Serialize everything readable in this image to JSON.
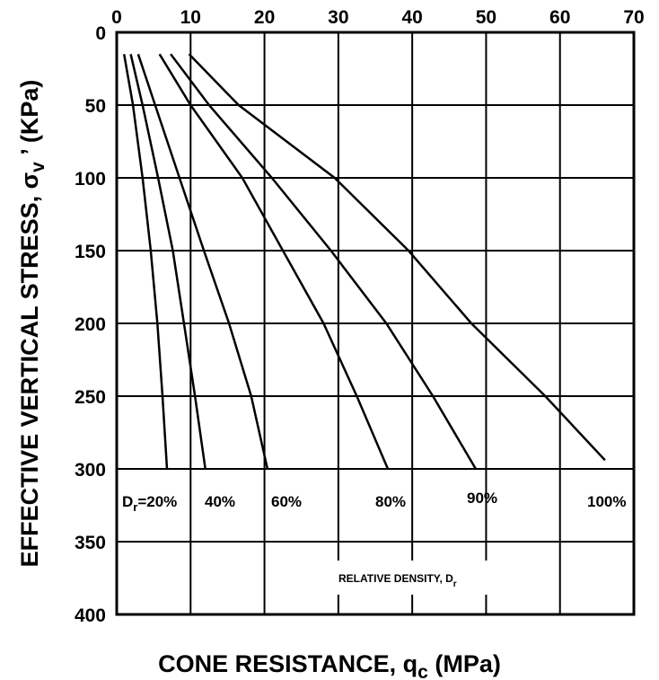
{
  "chart_data": {
    "type": "line",
    "x_title": {
      "text": "CONE RESISTANCE, q",
      "sub": "c",
      "after": " (MPa)"
    },
    "y_title": {
      "text": "EFFECTIVE VERTICAL STRESS, σ",
      "sub": "v",
      "after": " ’ (KPa)"
    },
    "annotation": {
      "text": "RELATIVE DENSITY, D",
      "sub": "r"
    },
    "series_label_prefix": {
      "text": "D",
      "sub": "r"
    },
    "xlim": [
      0,
      70
    ],
    "xticks": [
      0,
      10,
      20,
      30,
      40,
      50,
      60,
      70
    ],
    "ylim": [
      0,
      400
    ],
    "yticks": [
      0,
      50,
      100,
      150,
      200,
      250,
      300,
      350,
      400
    ],
    "y_inverted": true,
    "x_axis_top": true,
    "grid": true,
    "series": [
      {
        "name": "=20%",
        "color": "#000000",
        "x": [
          1.0,
          2.2,
          3.5,
          4.6,
          5.5,
          6.2,
          6.8
        ],
        "values": [
          15,
          50,
          100,
          150,
          200,
          250,
          300
        ]
      },
      {
        "name": "40%",
        "color": "#000000",
        "x": [
          1.9,
          3.5,
          5.6,
          7.6,
          9.1,
          10.6,
          12.0
        ],
        "values": [
          15,
          50,
          100,
          150,
          200,
          250,
          300
        ]
      },
      {
        "name": "60%",
        "color": "#000000",
        "x": [
          2.9,
          5.2,
          8.5,
          11.8,
          15.2,
          18.2,
          20.4
        ],
        "values": [
          15,
          50,
          100,
          150,
          200,
          250,
          300
        ]
      },
      {
        "name": "80%",
        "color": "#000000",
        "x": [
          5.8,
          10,
          17,
          22.5,
          28,
          32.5,
          36.7
        ],
        "values": [
          15,
          50,
          100,
          150,
          200,
          250,
          300
        ]
      },
      {
        "name": "90%",
        "color": "#000000",
        "x": [
          7.3,
          12.5,
          21,
          29,
          36.5,
          42.8,
          48.6
        ],
        "values": [
          15,
          50,
          100,
          150,
          200,
          250,
          300
        ]
      },
      {
        "name": "100%",
        "color": "#000000",
        "x": [
          9.8,
          16.5,
          29.5,
          39.5,
          48,
          58,
          66.1
        ],
        "values": [
          15,
          50,
          100,
          150,
          200,
          250,
          294
        ]
      }
    ]
  }
}
